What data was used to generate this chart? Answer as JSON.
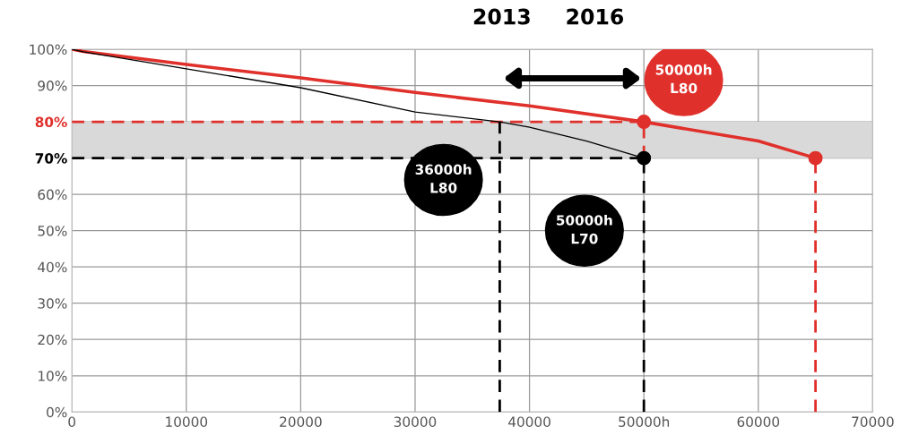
{
  "chart_data": {
    "type": "line",
    "x": [
      0,
      1000,
      10000,
      20000,
      30000,
      40000,
      50000,
      60000,
      65000
    ],
    "series": [
      {
        "color": "#e0302b",
        "values": [
          100,
          99.4,
          95.8,
          92.1,
          88.1,
          84.4,
          80,
          74.7,
          70
        ]
      },
      {
        "color": "#000000",
        "x": [
          0,
          1000,
          10000,
          20000,
          30000,
          37400,
          40000,
          45000,
          50000
        ],
        "values": [
          100,
          99.3,
          94.6,
          89.4,
          82.7,
          80,
          78.5,
          74.7,
          70
        ]
      },
      {
        "color": "#e0302b",
        "x": [
          0,
          50000
        ],
        "values": [
          80,
          80
        ],
        "line_style": "dashed"
      },
      {
        "color": "#000000",
        "x": [
          0,
          50000
        ],
        "values": [
          70,
          70
        ],
        "line_style": "dashed"
      },
      {
        "color": "#000000",
        "x": [
          37400,
          37400
        ],
        "values": [
          0,
          80
        ],
        "line_style": "dashed"
      },
      {
        "color": "#000000",
        "x": [
          50000,
          50000
        ],
        "values": [
          0,
          70
        ],
        "line_style": "dashed"
      },
      {
        "color": "#e0302b",
        "x": [
          50000,
          50000
        ],
        "values": [
          70,
          80
        ],
        "line_style": "dashed"
      },
      {
        "color": "#e0302b",
        "x": [
          65000,
          65000
        ],
        "values": [
          0,
          70
        ],
        "line_style": "dashed"
      },
      {
        "type": "scatter",
        "color": "#e0302b",
        "x": [
          50000,
          65000
        ],
        "values": [
          80,
          70
        ],
        "marker": "circle"
      },
      {
        "type": "scatter",
        "color": "#000000",
        "x": [
          50000
        ],
        "values": [
          70
        ],
        "marker": "circle"
      }
    ],
    "bands": [
      {
        "axis": "y",
        "from": 70,
        "to": 80,
        "color": "#d9d9d9"
      }
    ],
    "annotations": [
      "36000h\nL80",
      "50000h\nL70",
      "50000h\nL80",
      "2013",
      "2016"
    ],
    "xlim": [
      0,
      70000
    ],
    "xticks": [
      0,
      10000,
      20000,
      30000,
      40000,
      {
        "value": 50000,
        "label": "50000h"
      },
      60000,
      70000
    ],
    "ylim": [
      0,
      100
    ],
    "yticks": [
      {
        "value": 0,
        "label": "0%"
      },
      {
        "value": 10,
        "label": "10%"
      },
      {
        "value": 20,
        "label": "20%"
      },
      {
        "value": 30,
        "label": "30%"
      },
      {
        "value": 40,
        "label": "40%"
      },
      {
        "value": 50,
        "label": "50%"
      },
      {
        "value": 60,
        "label": "60%"
      },
      {
        "value": 70,
        "label": "70%"
      },
      {
        "value": 80,
        "label": "80%"
      },
      {
        "value": 90,
        "label": "90%"
      },
      {
        "value": 100,
        "label": "100%"
      }
    ],
    "grid": true,
    "line_style": "solid",
    "legend": false
  }
}
